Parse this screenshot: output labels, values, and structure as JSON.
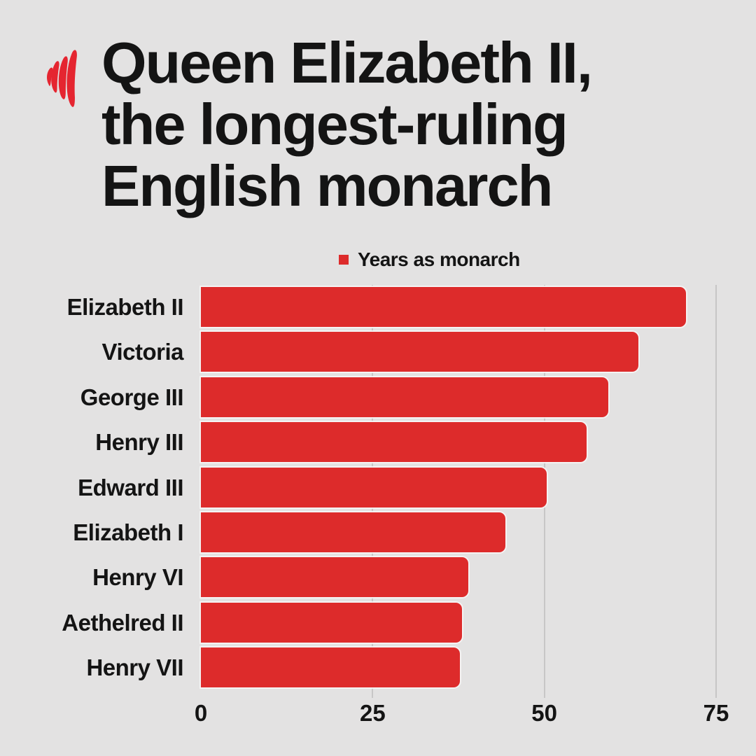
{
  "page": {
    "background_color": "#e3e2e2"
  },
  "header": {
    "logo_name": "sbs-flames-logo",
    "logo_color": "#e52530",
    "title_lines": [
      "Queen Elizabeth II,",
      "the longest-ruling",
      "English monarch"
    ],
    "title_full": "Queen Elizabeth II, the longest-ruling English monarch"
  },
  "legend": {
    "label": "Years as monarch",
    "swatch_color": "#dd2b2b"
  },
  "chart_data": {
    "type": "bar",
    "orientation": "horizontal",
    "title": "Queen Elizabeth II, the longest-ruling English monarch",
    "series_label": "Years as monarch",
    "categories": [
      "Elizabeth II",
      "Victoria",
      "George III",
      "Henry III",
      "Edward III",
      "Elizabeth I",
      "Henry VI",
      "Aethelred II",
      "Henry VII"
    ],
    "values": [
      70.6,
      63.7,
      59.3,
      56.1,
      50.3,
      44.3,
      38.9,
      38.0,
      37.7
    ],
    "xlabel": "",
    "ylabel": "",
    "xlim": [
      0,
      75
    ],
    "x_ticks": [
      0,
      25,
      50,
      75
    ],
    "grid": "vertical gridlines at 25, 50, 75",
    "legend_position": "top-center",
    "bar_color": "#dd2b2b",
    "gridline_color": "#c7c6c6"
  }
}
